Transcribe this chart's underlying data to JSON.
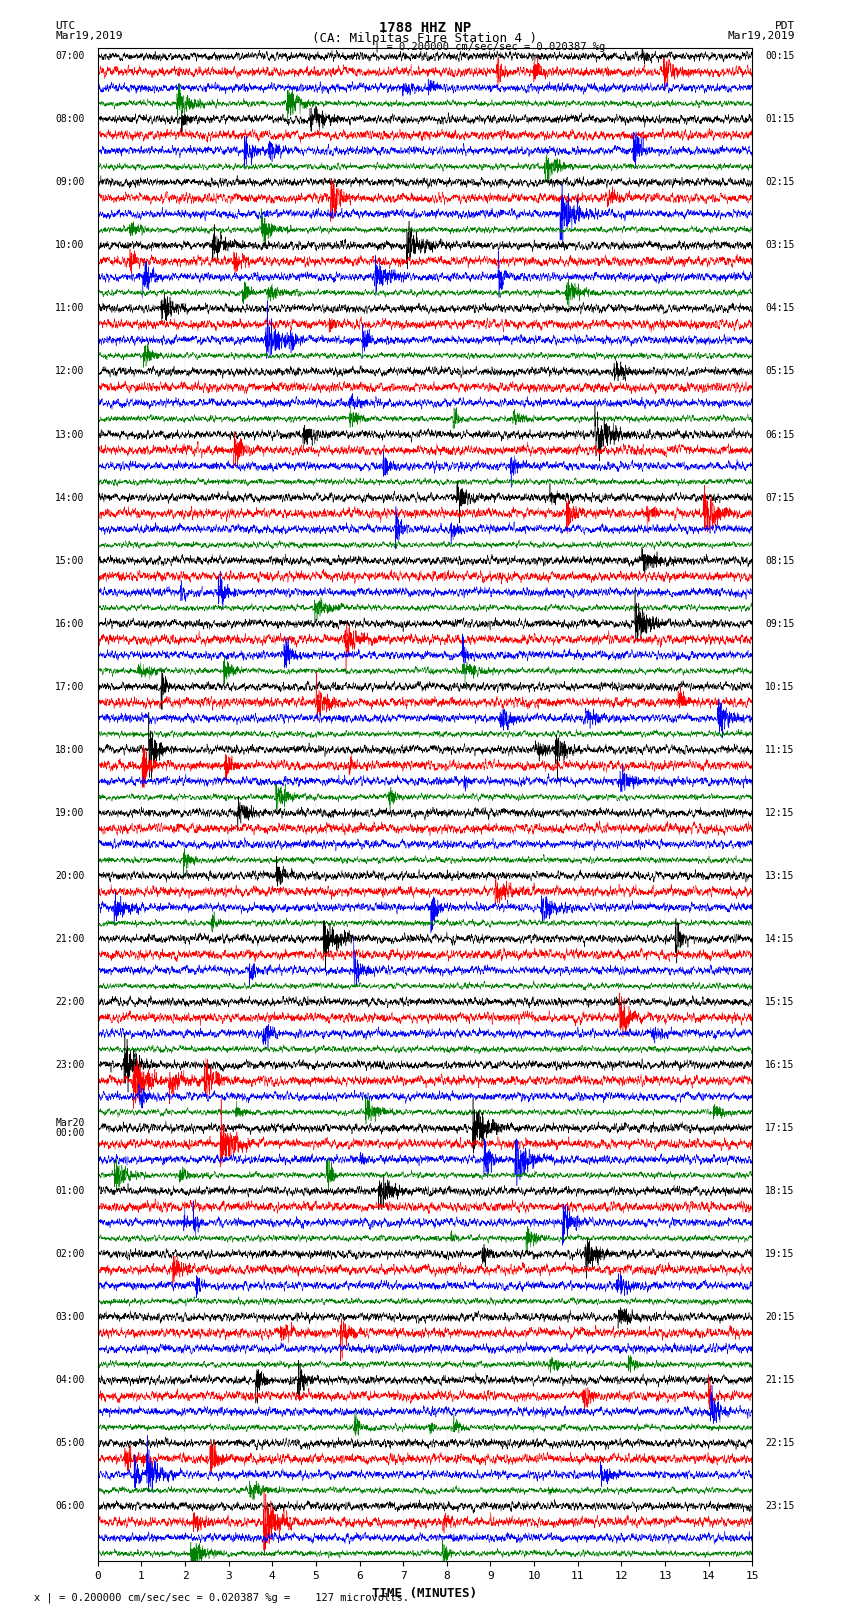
{
  "title_line1": "1788 HHZ NP",
  "title_line2": "(CA: Milpitas Fire Station 4 )",
  "scale_text": "= 0.200000 cm/sec/sec = 0.020387 %g",
  "bottom_label": "x | = 0.200000 cm/sec/sec = 0.020387 %g =    127 microvolts.",
  "xlabel": "TIME (MINUTES)",
  "utc_label": "UTC",
  "utc_date": "Mar19,2019",
  "pdt_label": "PDT",
  "pdt_date": "Mar19,2019",
  "left_times": [
    "07:00",
    "08:00",
    "09:00",
    "10:00",
    "11:00",
    "12:00",
    "13:00",
    "14:00",
    "15:00",
    "16:00",
    "17:00",
    "18:00",
    "19:00",
    "20:00",
    "21:00",
    "22:00",
    "23:00",
    "Mar20\n00:00",
    "01:00",
    "02:00",
    "03:00",
    "04:00",
    "05:00",
    "06:00"
  ],
  "right_times": [
    "00:15",
    "01:15",
    "02:15",
    "03:15",
    "04:15",
    "05:15",
    "06:15",
    "07:15",
    "08:15",
    "09:15",
    "10:15",
    "11:15",
    "12:15",
    "13:15",
    "14:15",
    "15:15",
    "16:15",
    "17:15",
    "18:15",
    "19:15",
    "20:15",
    "21:15",
    "22:15",
    "23:15"
  ],
  "colors": [
    "black",
    "red",
    "blue",
    "green"
  ],
  "n_rows": 24,
  "traces_per_row": 4,
  "xlim": [
    0,
    15
  ],
  "xticks": [
    0,
    1,
    2,
    3,
    4,
    5,
    6,
    7,
    8,
    9,
    10,
    11,
    12,
    13,
    14,
    15
  ],
  "bg_color": "white",
  "seed": 42
}
